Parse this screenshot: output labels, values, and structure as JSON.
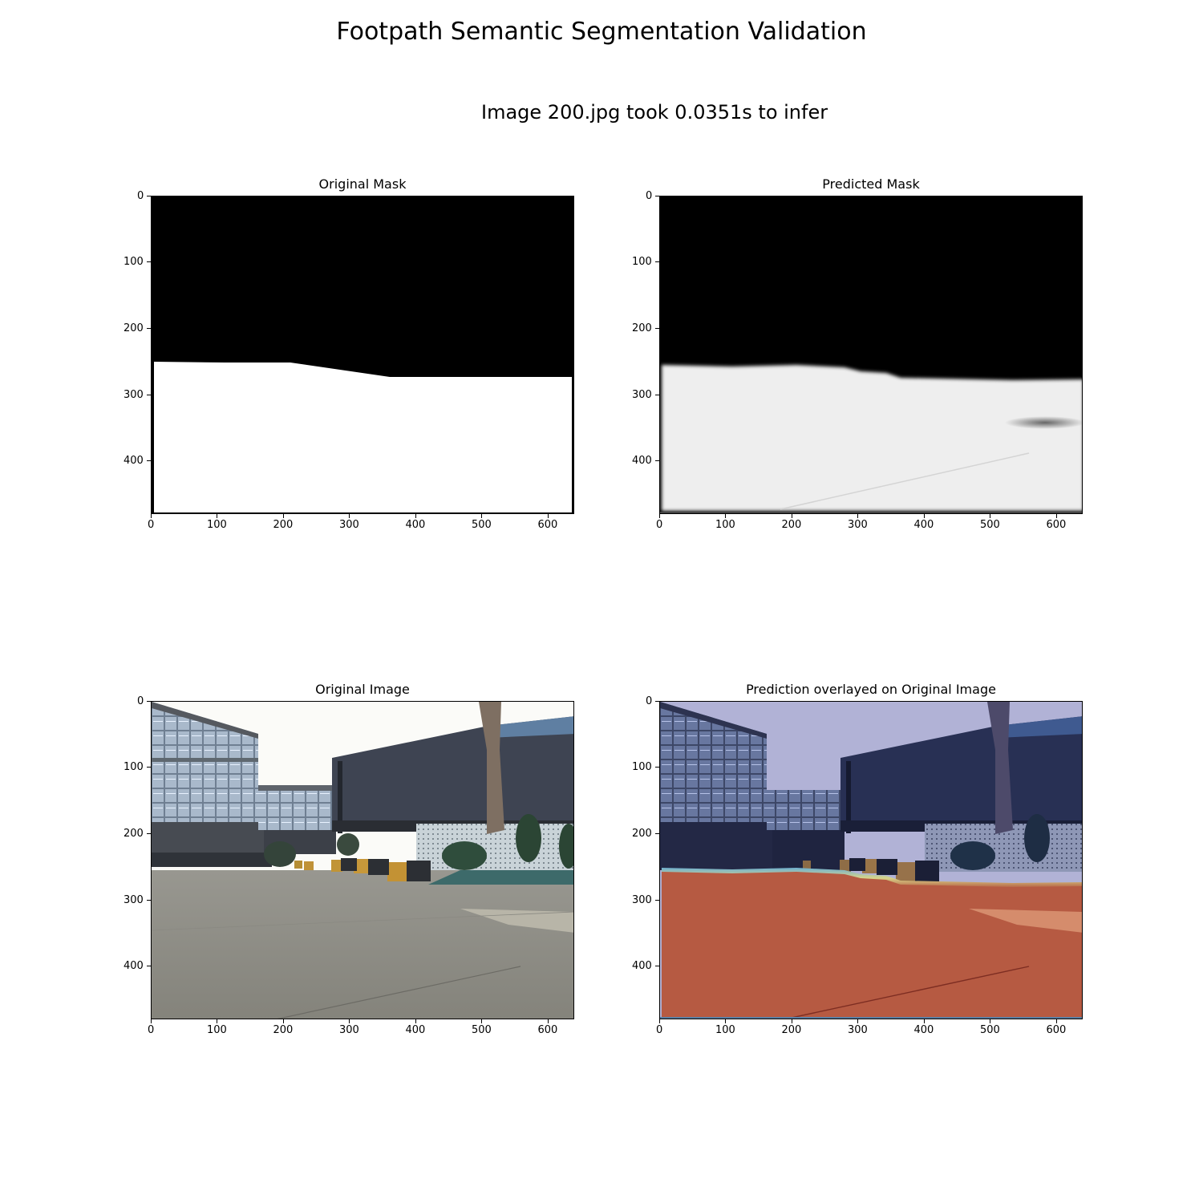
{
  "figure": {
    "suptitle": "Footpath Semantic Segmentation Validation",
    "subtitle": "Image 200.jpg took 0.0351s to infer"
  },
  "chart_data": [
    {
      "type": "heatmap",
      "title": "Original Mask",
      "xlim": [
        0,
        640
      ],
      "ylim": [
        480,
        0
      ],
      "xticks": [
        0,
        100,
        200,
        300,
        400,
        500,
        600
      ],
      "yticks": [
        0,
        100,
        200,
        300,
        400
      ],
      "content": "binary mask: black background (0), white footpath region (1)",
      "mask_boundary_y": [
        {
          "x": 0,
          "y": 250
        },
        {
          "x": 110,
          "y": 250
        },
        {
          "x": 210,
          "y": 250
        },
        {
          "x": 360,
          "y": 272
        },
        {
          "x": 640,
          "y": 272
        }
      ]
    },
    {
      "type": "heatmap",
      "title": "Predicted Mask",
      "xlim": [
        0,
        640
      ],
      "ylim": [
        480,
        0
      ],
      "xticks": [
        0,
        100,
        200,
        300,
        400,
        500,
        600
      ],
      "yticks": [
        0,
        100,
        200,
        300,
        400
      ],
      "content": "soft prediction mask: black background, white/grey footpath region",
      "mask_boundary_y": [
        {
          "x": 0,
          "y": 253
        },
        {
          "x": 200,
          "y": 254
        },
        {
          "x": 300,
          "y": 262
        },
        {
          "x": 360,
          "y": 270
        },
        {
          "x": 640,
          "y": 275
        }
      ]
    },
    {
      "type": "heatmap",
      "title": "Original Image",
      "xlim": [
        0,
        640
      ],
      "ylim": [
        480,
        0
      ],
      "xticks": [
        0,
        100,
        200,
        300,
        400,
        500,
        600
      ],
      "yticks": [
        0,
        100,
        200,
        300,
        400
      ],
      "content": "photo: campus footpath with engineering building and tree"
    },
    {
      "type": "heatmap",
      "title": "Prediction overlayed on Original Image",
      "xlim": [
        0,
        640
      ],
      "ylim": [
        480,
        0
      ],
      "xticks": [
        0,
        100,
        200,
        300,
        400,
        500,
        600
      ],
      "yticks": [
        0,
        100,
        200,
        300,
        400
      ],
      "content": "photo with blue tint above and red/orange overlay on predicted footpath"
    }
  ],
  "colors": {
    "mask_background": "#000000",
    "mask_foreground": "#ffffff",
    "sky": "#fbfbf8",
    "building_dark": "#3e4452",
    "pavement": "#8d8c85",
    "overlay_bg_tint": "#3c4a8c",
    "overlay_fg_tint": "#b3573e"
  }
}
